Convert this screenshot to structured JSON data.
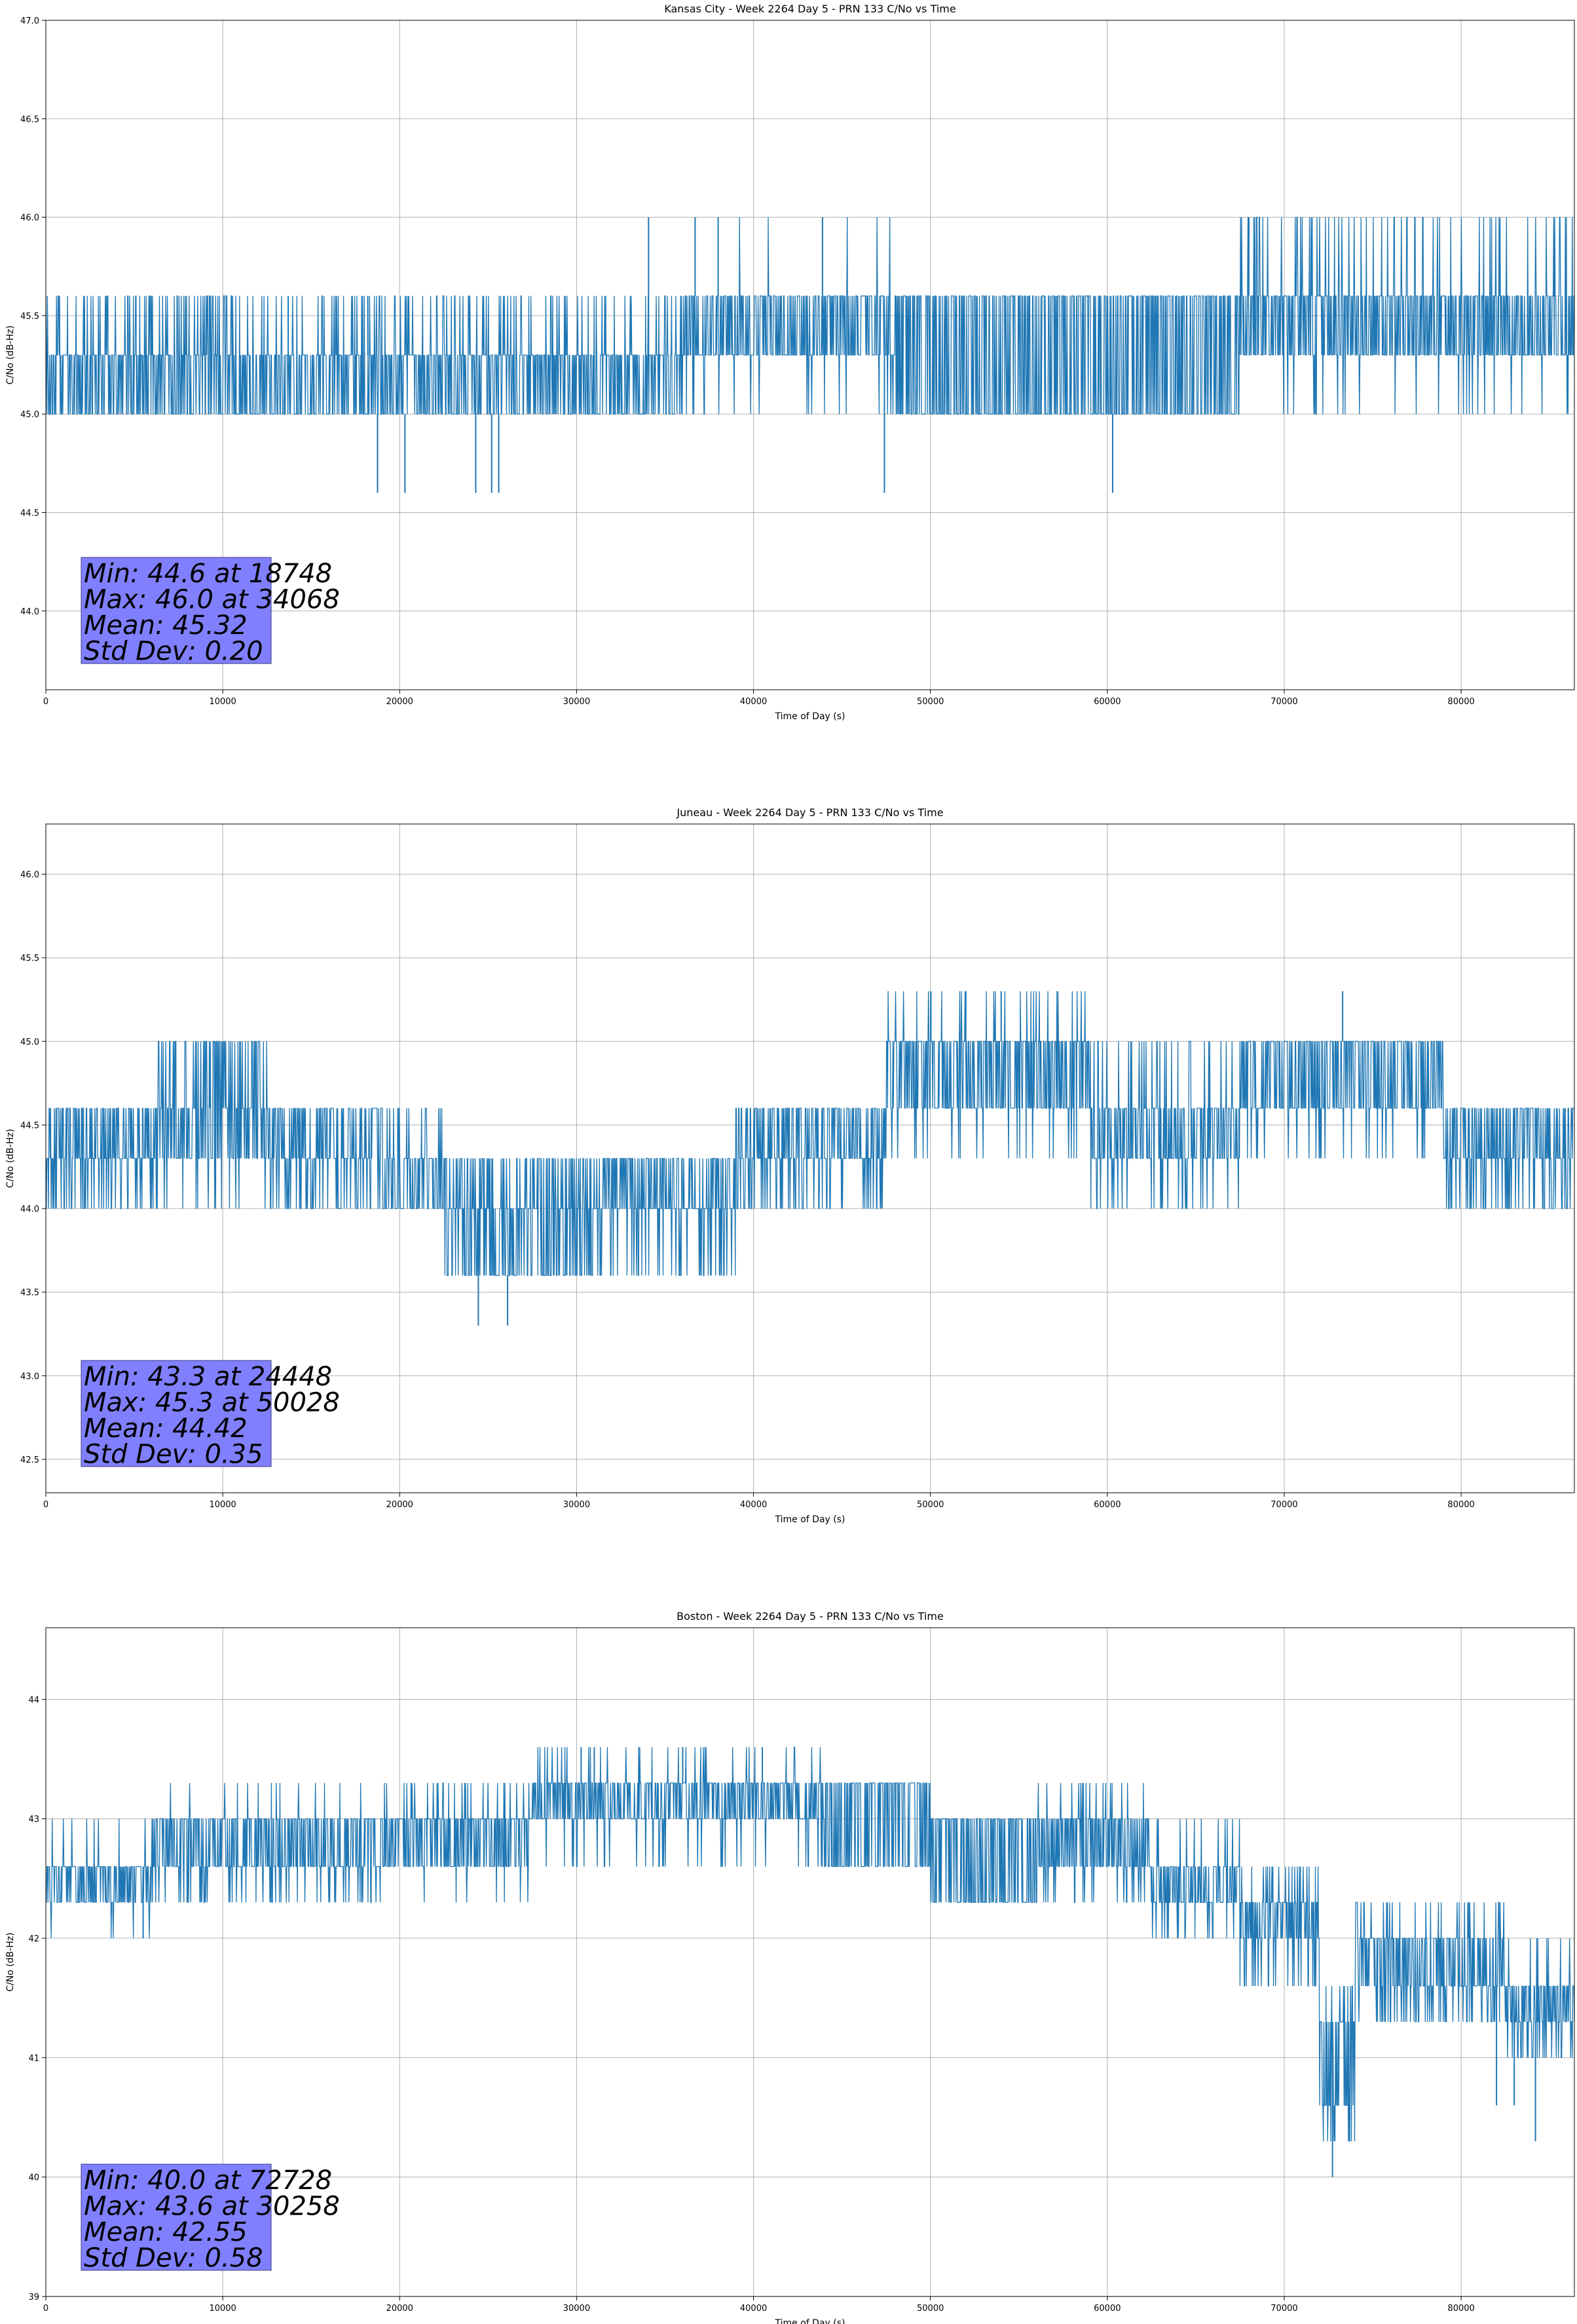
{
  "chart_data": [
    {
      "type": "line",
      "title": "Kansas City - Week 2264 Day 5 - PRN 133 C/No vs Time",
      "xlabel": "Time of Day (s)",
      "ylabel": "C/No (dB-Hz)",
      "xlim": [
        0,
        86400
      ],
      "ylim": [
        43.6,
        47.0
      ],
      "xticks": [
        0,
        10000,
        20000,
        30000,
        40000,
        50000,
        60000,
        70000,
        80000
      ],
      "yticks": [
        44.0,
        44.5,
        45.0,
        45.5,
        46.0,
        46.5,
        47.0
      ],
      "ytick_decimals": 1,
      "grid": true,
      "color": "#1f77b4",
      "stats": [
        "Min: 44.6 at 18748",
        "Max: 46.0 at 34068",
        "Mean: 45.32",
        "Std Dev: 0.20"
      ],
      "series": [
        {
          "name": "C/No",
          "bands": [
            {
              "x": [
                0,
                36000
              ],
              "lo": 45.0,
              "hi": 45.3,
              "up": 45.6,
              "pUp": 0.15,
              "down": 45.0,
              "pDown": 0.0
            },
            {
              "x": [
                36000,
                48000
              ],
              "lo": 45.3,
              "hi": 45.6,
              "up": 46.0,
              "pUp": 0.02,
              "down": 45.0,
              "pDown": 0.06
            },
            {
              "x": [
                48000,
                56500
              ],
              "lo": 45.0,
              "hi": 45.6,
              "up": 45.6,
              "pUp": 0.0,
              "down": 45.0,
              "pDown": 0.0
            },
            {
              "x": [
                56500,
                67500
              ],
              "lo": 45.0,
              "hi": 45.6,
              "up": 45.6,
              "pUp": 0.0,
              "down": 45.0,
              "pDown": 0.0
            },
            {
              "x": [
                67500,
                86400
              ],
              "lo": 45.3,
              "hi": 45.6,
              "up": 46.0,
              "pUp": 0.12,
              "down": 45.0,
              "pDown": 0.05
            }
          ],
          "events": [
            [
              13700,
              45.6
            ],
            [
              18200,
              45.6
            ],
            [
              18748,
              44.6
            ],
            [
              20300,
              44.6
            ],
            [
              24300,
              44.6
            ],
            [
              25200,
              44.6
            ],
            [
              25600,
              44.6
            ],
            [
              34068,
              46.0
            ],
            [
              36700,
              46.0
            ],
            [
              38000,
              46.0
            ],
            [
              43900,
              46.0
            ],
            [
              47400,
              44.6
            ],
            [
              60300,
              44.6
            ],
            [
              68000,
              46.0
            ]
          ]
        }
      ]
    },
    {
      "type": "line",
      "title": "Juneau - Week 2264 Day 5 - PRN 133 C/No vs Time",
      "xlabel": "Time of Day (s)",
      "ylabel": "C/No (dB-Hz)",
      "xlim": [
        0,
        86400
      ],
      "ylim": [
        42.3,
        46.3
      ],
      "xticks": [
        0,
        10000,
        20000,
        30000,
        40000,
        50000,
        60000,
        70000,
        80000
      ],
      "yticks": [
        42.5,
        43.0,
        43.5,
        44.0,
        44.5,
        45.0,
        45.5,
        46.0
      ],
      "ytick_decimals": 1,
      "grid": true,
      "color": "#1f77b4",
      "stats": [
        "Min: 43.3 at 24448",
        "Max: 45.3 at 50028",
        "Mean: 44.42",
        "Std Dev: 0.35"
      ],
      "series": [
        {
          "name": "C/No",
          "bands": [
            {
              "x": [
                0,
                6000
              ],
              "lo": 44.3,
              "hi": 44.6,
              "up": 44.6,
              "pUp": 0.0,
              "down": 44.0,
              "pDown": 0.2
            },
            {
              "x": [
                6000,
                12600
              ],
              "lo": 44.3,
              "hi": 44.6,
              "up": 45.0,
              "pUp": 0.28,
              "down": 44.0,
              "pDown": 0.06
            },
            {
              "x": [
                12600,
                19000
              ],
              "lo": 44.3,
              "hi": 44.6,
              "up": 44.6,
              "pUp": 0.0,
              "down": 44.0,
              "pDown": 0.2
            },
            {
              "x": [
                19000,
                22500
              ],
              "lo": 44.0,
              "hi": 44.3,
              "up": 44.6,
              "pUp": 0.15,
              "down": 44.0,
              "pDown": 0.0
            },
            {
              "x": [
                22500,
                31500
              ],
              "lo": 43.6,
              "hi": 44.0,
              "up": 44.3,
              "pUp": 0.3,
              "down": 43.6,
              "pDown": 0.0
            },
            {
              "x": [
                31500,
                39000
              ],
              "lo": 44.0,
              "hi": 44.3,
              "up": 44.3,
              "pUp": 0.0,
              "down": 43.6,
              "pDown": 0.15
            },
            {
              "x": [
                39000,
                47500
              ],
              "lo": 44.3,
              "hi": 44.6,
              "up": 44.6,
              "pUp": 0.0,
              "down": 44.0,
              "pDown": 0.2
            },
            {
              "x": [
                47500,
                59000
              ],
              "lo": 44.6,
              "hi": 45.0,
              "up": 45.3,
              "pUp": 0.08,
              "down": 44.3,
              "pDown": 0.05
            },
            {
              "x": [
                59000,
                67500
              ],
              "lo": 44.3,
              "hi": 44.6,
              "up": 45.0,
              "pUp": 0.12,
              "down": 44.0,
              "pDown": 0.08
            },
            {
              "x": [
                67500,
                79000
              ],
              "lo": 44.6,
              "hi": 45.0,
              "up": 45.0,
              "pUp": 0.0,
              "down": 44.3,
              "pDown": 0.06
            },
            {
              "x": [
                79000,
                86400
              ],
              "lo": 44.3,
              "hi": 44.6,
              "up": 44.6,
              "pUp": 0.0,
              "down": 44.0,
              "pDown": 0.2
            }
          ],
          "events": [
            [
              24448,
              43.3
            ],
            [
              26100,
              43.3
            ],
            [
              50028,
              45.3
            ],
            [
              52000,
              45.3
            ],
            [
              54000,
              45.3
            ],
            [
              73300,
              45.3
            ]
          ]
        }
      ]
    },
    {
      "type": "line",
      "title": "Boston - Week 2264 Day 5 - PRN 133 C/No vs Time",
      "xlabel": "Time of Day (s)",
      "ylabel": "C/No (dB-Hz)",
      "xlim": [
        0,
        86400
      ],
      "ylim": [
        39.0,
        44.6
      ],
      "xticks": [
        0,
        10000,
        20000,
        30000,
        40000,
        50000,
        60000,
        70000,
        80000
      ],
      "yticks": [
        39,
        40,
        41,
        42,
        43,
        44
      ],
      "ytick_decimals": 0,
      "grid": true,
      "color": "#1f77b4",
      "stats": [
        "Min: 40.0 at 72728",
        "Max: 43.6 at 30258",
        "Mean: 42.55",
        "Std Dev: 0.58"
      ],
      "series": [
        {
          "name": "C/No",
          "bands": [
            {
              "x": [
                0,
                6000
              ],
              "lo": 42.3,
              "hi": 42.6,
              "up": 43.0,
              "pUp": 0.03,
              "down": 42.0,
              "pDown": 0.02
            },
            {
              "x": [
                6000,
                19000
              ],
              "lo": 42.6,
              "hi": 43.0,
              "up": 43.3,
              "pUp": 0.04,
              "down": 42.3,
              "pDown": 0.12
            },
            {
              "x": [
                19000,
                27500
              ],
              "lo": 42.6,
              "hi": 43.0,
              "up": 43.3,
              "pUp": 0.12,
              "down": 42.3,
              "pDown": 0.03
            },
            {
              "x": [
                27500,
                44000
              ],
              "lo": 43.0,
              "hi": 43.3,
              "up": 43.6,
              "pUp": 0.06,
              "down": 42.6,
              "pDown": 0.06
            },
            {
              "x": [
                44000,
                50000
              ],
              "lo": 42.6,
              "hi": 43.3,
              "up": 43.3,
              "pUp": 0.0,
              "down": 42.6,
              "pDown": 0.0
            },
            {
              "x": [
                50000,
                56000
              ],
              "lo": 42.3,
              "hi": 43.0,
              "up": 43.0,
              "pUp": 0.0,
              "down": 42.3,
              "pDown": 0.0
            },
            {
              "x": [
                56000,
                62500
              ],
              "lo": 42.6,
              "hi": 43.0,
              "up": 43.3,
              "pUp": 0.08,
              "down": 42.3,
              "pDown": 0.12
            },
            {
              "x": [
                62500,
                67500
              ],
              "lo": 42.3,
              "hi": 42.6,
              "up": 43.0,
              "pUp": 0.1,
              "down": 42.0,
              "pDown": 0.08
            },
            {
              "x": [
                67500,
                72000
              ],
              "lo": 42.0,
              "hi": 42.3,
              "up": 42.6,
              "pUp": 0.15,
              "down": 41.6,
              "pDown": 0.18
            },
            {
              "x": [
                72000,
                74000
              ],
              "lo": 40.6,
              "hi": 41.3,
              "up": 41.6,
              "pUp": 0.1,
              "down": 40.3,
              "pDown": 0.12
            },
            {
              "x": [
                74000,
                82500
              ],
              "lo": 41.6,
              "hi": 42.0,
              "up": 42.3,
              "pUp": 0.15,
              "down": 41.3,
              "pDown": 0.18
            },
            {
              "x": [
                82500,
                86400
              ],
              "lo": 41.3,
              "hi": 41.6,
              "up": 42.0,
              "pUp": 0.1,
              "down": 41.0,
              "pDown": 0.2
            }
          ],
          "events": [
            [
              5500,
              42.0
            ],
            [
              30258,
              43.6
            ],
            [
              31000,
              43.6
            ],
            [
              36000,
              43.6
            ],
            [
              40500,
              43.6
            ],
            [
              72728,
              40.0
            ],
            [
              83000,
              40.6
            ],
            [
              84200,
              40.3
            ],
            [
              82000,
              40.6
            ]
          ]
        }
      ]
    }
  ]
}
